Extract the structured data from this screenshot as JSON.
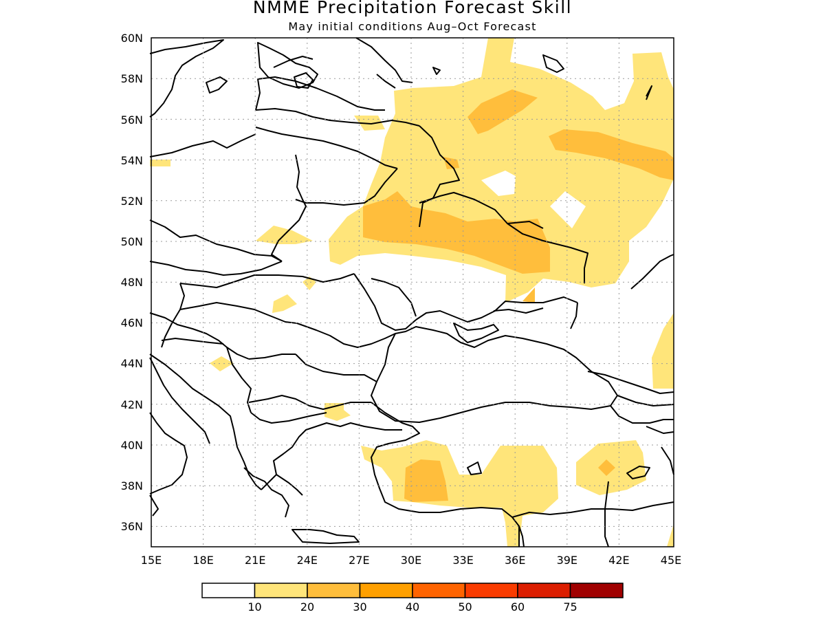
{
  "title": "NMME Precipitation Forecast Skill",
  "subtitle": "May initial conditions  Aug–Oct Forecast",
  "map": {
    "lon_range": [
      15,
      45
    ],
    "lat_range": [
      35,
      60
    ],
    "x_ticks": [
      "15E",
      "18E",
      "21E",
      "24E",
      "27E",
      "30E",
      "33E",
      "36E",
      "39E",
      "42E",
      "45E"
    ],
    "y_ticks": [
      "36N",
      "38N",
      "40N",
      "42N",
      "44N",
      "46N",
      "48N",
      "50N",
      "52N",
      "54N",
      "56N",
      "58N",
      "60N"
    ],
    "grid": "dotted"
  },
  "colorbar": {
    "labels": [
      "10",
      "20",
      "30",
      "40",
      "50",
      "60",
      "75"
    ],
    "colors": [
      "#ffffff",
      "#ffe57a",
      "#ffbe3c",
      "#ffa000",
      "#ff6400",
      "#fa3c00",
      "#dc1e00",
      "#a00000"
    ]
  },
  "skill_regions": [
    {
      "level": "10-20",
      "color": "#ffe57a",
      "description": "Eastern Europe / western Russia"
    },
    {
      "level": "20-30",
      "color": "#ffbe3c",
      "description": "Ukraine and southern Russia core"
    },
    {
      "level": "10-20",
      "color": "#ffe57a",
      "description": "Western Turkey"
    },
    {
      "level": "10-20",
      "color": "#ffe57a",
      "description": "Eastern Turkey"
    }
  ]
}
